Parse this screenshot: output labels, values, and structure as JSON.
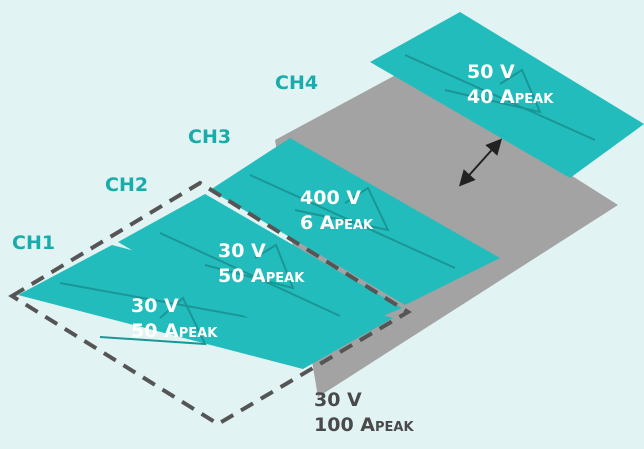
{
  "colors": {
    "background": "#e2f3f4",
    "panel": "#22bcbc",
    "panel_line": "#1a9696",
    "base": "#a3a3a3",
    "label": "#1aabab",
    "dashed": "#555555"
  },
  "channels": [
    {
      "label": "CH1",
      "voltage": "30 V",
      "current": "50 A",
      "current_sub": "PEAK"
    },
    {
      "label": "CH2",
      "voltage": "30 V",
      "current": "50 A",
      "current_sub": "PEAK"
    },
    {
      "label": "CH3",
      "voltage": "400 V",
      "current": "6 A",
      "current_sub": "PEAK"
    },
    {
      "label": "CH4",
      "voltage": "50 V",
      "current": "40 A",
      "current_sub": "PEAK"
    }
  ],
  "combined": {
    "voltage": "30 V",
    "current": "100 A",
    "current_sub": "PEAK"
  },
  "icons": {
    "move": "double-arrow-icon"
  }
}
